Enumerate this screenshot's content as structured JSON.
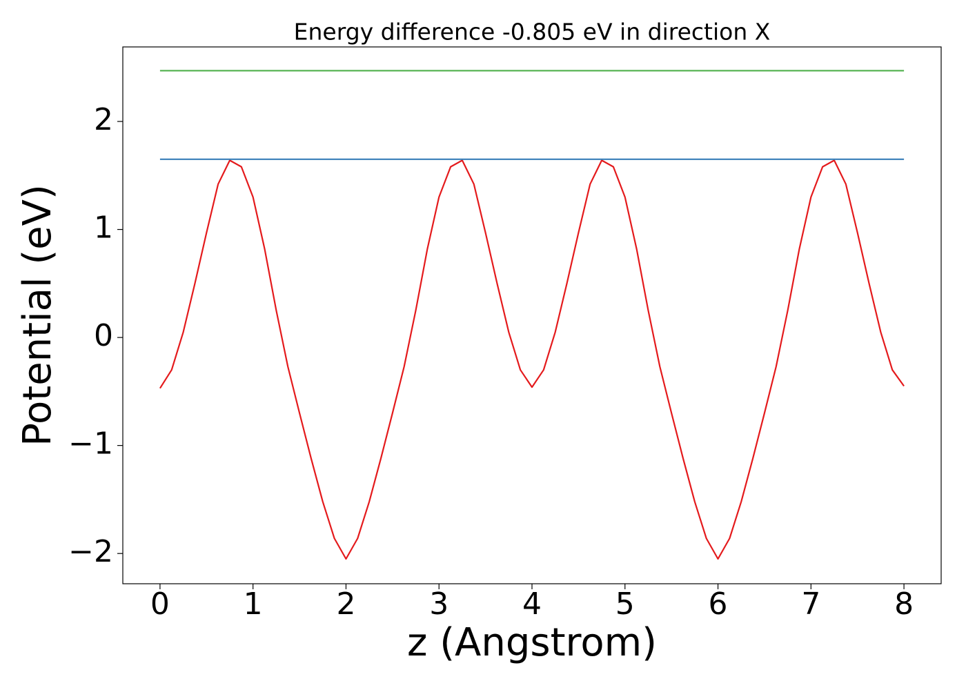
{
  "chart_data": {
    "type": "line",
    "title": "Energy difference -0.805 eV in direction X",
    "xlabel": "z (Angstrom)",
    "ylabel": "Potential (eV)",
    "series": [
      {
        "color": "#e41a1c",
        "x": [
          0,
          0.125,
          0.25,
          0.375,
          0.5,
          0.625,
          0.75,
          0.875,
          1,
          1.125,
          1.25,
          1.375,
          1.5,
          1.625,
          1.75,
          1.875,
          2,
          2.125,
          2.25,
          2.375,
          2.5,
          2.625,
          2.75,
          2.875,
          3,
          3.125,
          3.25,
          3.375,
          3.5,
          3.625,
          3.75,
          3.875,
          4,
          4.125,
          4.25,
          4.375,
          4.5,
          4.625,
          4.75,
          4.875,
          5,
          5.125,
          5.25,
          5.375,
          5.5,
          5.625,
          5.75,
          5.875,
          6,
          6.125,
          6.25,
          6.375,
          6.5,
          6.625,
          6.75,
          6.875,
          7,
          7.125,
          7.25,
          7.375,
          7.5,
          7.625,
          7.75,
          7.875,
          8
        ],
        "values": [
          -0.47,
          -0.3,
          0.05,
          0.5,
          0.97,
          1.42,
          1.64,
          1.58,
          1.3,
          0.82,
          0.25,
          -0.27,
          -0.7,
          -1.12,
          -1.52,
          -1.86,
          -2.05,
          -1.86,
          -1.52,
          -1.12,
          -0.7,
          -0.27,
          0.25,
          0.82,
          1.3,
          1.58,
          1.64,
          1.42,
          0.97,
          0.5,
          0.05,
          -0.3,
          -0.46,
          -0.3,
          0.05,
          0.5,
          0.97,
          1.42,
          1.64,
          1.58,
          1.3,
          0.82,
          0.25,
          -0.27,
          -0.7,
          -1.12,
          -1.52,
          -1.86,
          -2.05,
          -1.86,
          -1.52,
          -1.12,
          -0.7,
          -0.27,
          0.25,
          0.82,
          1.3,
          1.58,
          1.64,
          1.42,
          0.97,
          0.5,
          0.05,
          -0.3,
          -0.45
        ]
      },
      {
        "color": "#377eb8",
        "x": [
          0,
          8
        ],
        "values": [
          1.65,
          1.65
        ]
      },
      {
        "color": "#4daf4a",
        "x": [
          0,
          8
        ],
        "values": [
          2.47,
          2.47
        ]
      }
    ],
    "xlim": [
      -0.4,
      8.4
    ],
    "xticks": [
      0,
      1,
      2,
      3,
      4,
      5,
      6,
      7,
      8
    ],
    "ylim": [
      -2.28,
      2.69
    ],
    "yticks": [
      {
        "value": -2,
        "label": "−2"
      },
      {
        "value": -1,
        "label": "−1"
      },
      0,
      1,
      2
    ]
  }
}
